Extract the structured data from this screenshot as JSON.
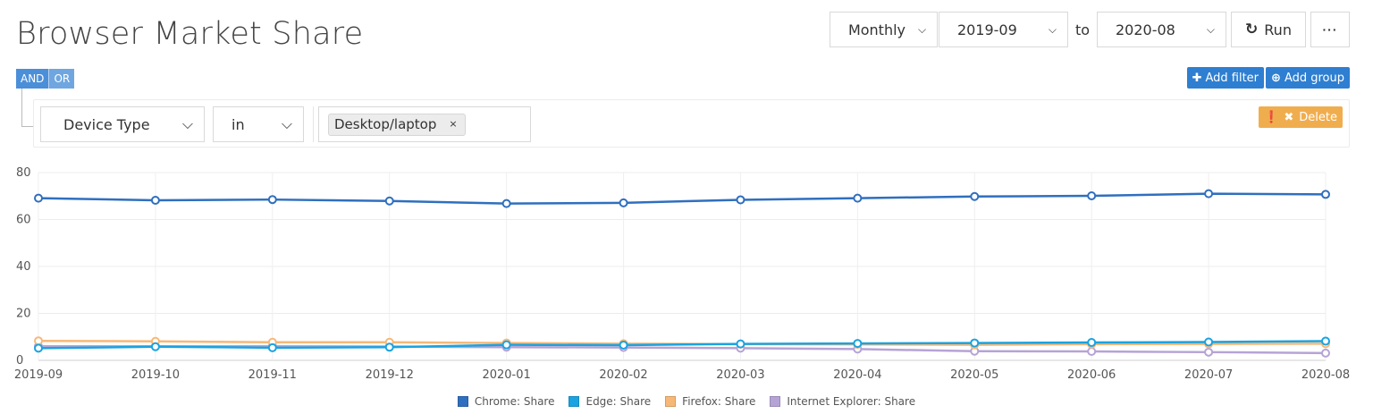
{
  "page": {
    "title": "Browser Market Share"
  },
  "toolbar": {
    "period": "Monthly",
    "from": "2019-09",
    "to_label": "to",
    "to": "2020-08",
    "run_label": "Run",
    "more_label": "···"
  },
  "filter": {
    "and_label": "AND",
    "or_label": "OR",
    "add_filter_label": "Add filter",
    "add_group_label": "Add group",
    "rule": {
      "field": "Device Type",
      "operator": "in",
      "value_tag": "Desktop/laptop",
      "remove_tag": "×",
      "delete_label": "Delete"
    }
  },
  "colors": {
    "chrome": "#2f6fbf",
    "edge": "#1aa3e0",
    "firefox": "#f7b877",
    "ie": "#b6a3d6",
    "accent": "#2e7fd1",
    "warning": "#f0ad4e"
  },
  "chart_data": {
    "type": "line",
    "categories": [
      "2019-09",
      "2019-10",
      "2019-11",
      "2019-12",
      "2020-01",
      "2020-02",
      "2020-03",
      "2020-04",
      "2020-05",
      "2020-06",
      "2020-07",
      "2020-08"
    ],
    "ylim": [
      0,
      80
    ],
    "yticks": [
      0,
      20,
      40,
      60,
      80
    ],
    "grid": true,
    "legend_position": "bottom",
    "series": [
      {
        "name": "Chrome: Share",
        "color": "#2f6fbf",
        "values": [
          69.1,
          68.2,
          68.5,
          67.9,
          66.8,
          67.1,
          68.4,
          69.1,
          69.8,
          70.1,
          71.0,
          70.7
        ]
      },
      {
        "name": "Edge: Share",
        "color": "#1aa3e0",
        "values": [
          5.2,
          5.8,
          5.4,
          5.6,
          6.6,
          6.5,
          7.0,
          7.2,
          7.4,
          7.6,
          7.8,
          8.2
        ]
      },
      {
        "name": "Firefox: Share",
        "color": "#f7b877",
        "values": [
          8.3,
          8.1,
          7.7,
          7.7,
          7.4,
          7.1,
          6.9,
          6.8,
          6.6,
          6.9,
          7.0,
          7.1
        ]
      },
      {
        "name": "Internet Explorer: Share",
        "color": "#b6a3d6",
        "values": [
          6.0,
          6.0,
          6.0,
          5.9,
          5.6,
          5.5,
          5.2,
          4.8,
          3.9,
          3.8,
          3.5,
          3.1
        ]
      }
    ]
  }
}
